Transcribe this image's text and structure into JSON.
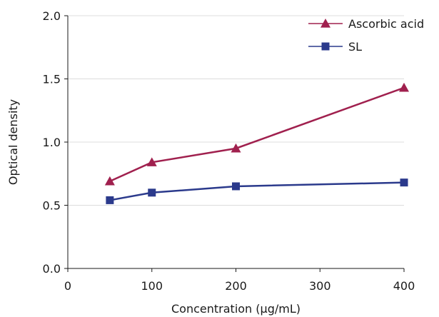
{
  "chart_data": {
    "type": "line",
    "xlabel": "Concentration (µg/mL)",
    "ylabel": "Optical density",
    "xlim": [
      0,
      400
    ],
    "ylim": [
      0,
      2.0
    ],
    "xticks": [
      0,
      100,
      200,
      300,
      400
    ],
    "yticks": [
      0.0,
      0.5,
      1.0,
      1.5,
      2.0
    ],
    "ytick_labels": [
      "0.0",
      "0.5",
      "1.0",
      "1.5",
      "2.0"
    ],
    "grid": "horizontal",
    "legend_position": "top-right",
    "series": [
      {
        "name": "Ascorbic acid",
        "marker": "triangle",
        "color": "#a0204e",
        "x": [
          50,
          100,
          200,
          400
        ],
        "y": [
          0.69,
          0.84,
          0.95,
          1.43
        ]
      },
      {
        "name": "SL",
        "marker": "square",
        "color": "#2b3a8c",
        "x": [
          50,
          100,
          200,
          400
        ],
        "y": [
          0.54,
          0.6,
          0.65,
          0.68
        ]
      }
    ]
  }
}
